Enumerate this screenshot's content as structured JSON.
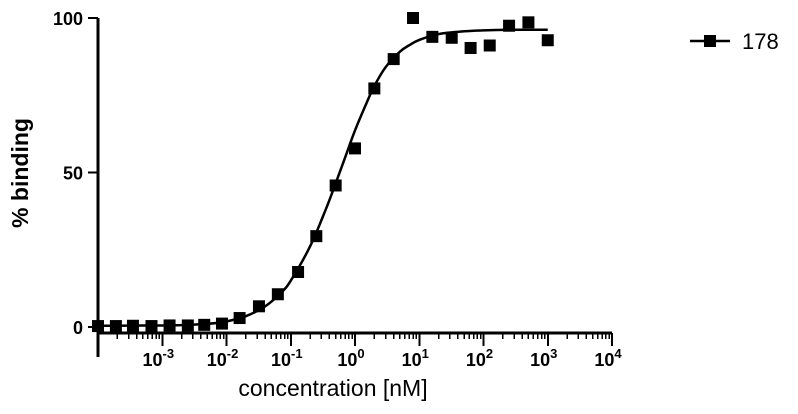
{
  "chart_data": {
    "type": "scatter",
    "title": "",
    "xlabel": "concentration [nM]",
    "ylabel": "% binding",
    "x_scale": "log10",
    "xlim": [
      0.0001,
      10000
    ],
    "ylim": [
      0,
      100
    ],
    "grid": false,
    "legend_position": "top-right",
    "x_ticks": [
      {
        "value": 0.001,
        "base": "10",
        "exp": "-3"
      },
      {
        "value": 0.01,
        "base": "10",
        "exp": "-2"
      },
      {
        "value": 0.1,
        "base": "10",
        "exp": "-1"
      },
      {
        "value": 1,
        "base": "10",
        "exp": "0"
      },
      {
        "value": 10,
        "base": "10",
        "exp": "1"
      },
      {
        "value": 100,
        "base": "10",
        "exp": "2"
      },
      {
        "value": 1000,
        "base": "10",
        "exp": "3"
      },
      {
        "value": 10000,
        "base": "10",
        "exp": "4"
      }
    ],
    "y_ticks": [
      {
        "value": 0,
        "label": "0"
      },
      {
        "value": 50,
        "label": "50"
      },
      {
        "value": 100,
        "label": "100"
      }
    ],
    "series": [
      {
        "name": "178",
        "color": "#000000",
        "marker": "square",
        "points": [
          {
            "x": 0.0001,
            "y": 0.3
          },
          {
            "x": 0.00019,
            "y": 0.3
          },
          {
            "x": 0.00035,
            "y": 0.4
          },
          {
            "x": 0.00068,
            "y": 0.3
          },
          {
            "x": 0.0013,
            "y": 0.5
          },
          {
            "x": 0.0025,
            "y": 0.5
          },
          {
            "x": 0.0045,
            "y": 0.7
          },
          {
            "x": 0.0085,
            "y": 1.1
          },
          {
            "x": 0.016,
            "y": 2.9
          },
          {
            "x": 0.032,
            "y": 6.7
          },
          {
            "x": 0.063,
            "y": 10.6
          },
          {
            "x": 0.13,
            "y": 17.8
          },
          {
            "x": 0.25,
            "y": 29.4
          },
          {
            "x": 0.5,
            "y": 45.8
          },
          {
            "x": 1.0,
            "y": 57.8
          },
          {
            "x": 2.0,
            "y": 77.2
          },
          {
            "x": 4.0,
            "y": 86.7
          },
          {
            "x": 8.0,
            "y": 100.0
          },
          {
            "x": 16.0,
            "y": 93.9
          },
          {
            "x": 32.0,
            "y": 93.6
          },
          {
            "x": 63.0,
            "y": 90.3
          },
          {
            "x": 125.0,
            "y": 91.1
          },
          {
            "x": 250.0,
            "y": 97.5
          },
          {
            "x": 500.0,
            "y": 98.6
          },
          {
            "x": 1000.0,
            "y": 92.8
          }
        ],
        "fit_curve": [
          {
            "x": 0.0001,
            "y": 0.4
          },
          {
            "x": 0.0002,
            "y": 0.4
          },
          {
            "x": 0.0005,
            "y": 0.5
          },
          {
            "x": 0.001,
            "y": 0.5
          },
          {
            "x": 0.002,
            "y": 0.6
          },
          {
            "x": 0.004,
            "y": 0.9
          },
          {
            "x": 0.007,
            "y": 1.3
          },
          {
            "x": 0.01,
            "y": 1.8
          },
          {
            "x": 0.02,
            "y": 3.5
          },
          {
            "x": 0.04,
            "y": 6.7
          },
          {
            "x": 0.07,
            "y": 11.0
          },
          {
            "x": 0.1,
            "y": 15.0
          },
          {
            "x": 0.2,
            "y": 26.1
          },
          {
            "x": 0.35,
            "y": 38.0
          },
          {
            "x": 0.5,
            "y": 46.5
          },
          {
            "x": 0.7,
            "y": 54.8
          },
          {
            "x": 1.0,
            "y": 63.6
          },
          {
            "x": 1.5,
            "y": 72.3
          },
          {
            "x": 2.0,
            "y": 78.0
          },
          {
            "x": 3.0,
            "y": 84.1
          },
          {
            "x": 5.0,
            "y": 89.1
          },
          {
            "x": 7.0,
            "y": 91.2
          },
          {
            "x": 10.0,
            "y": 92.9
          },
          {
            "x": 20.0,
            "y": 94.8
          },
          {
            "x": 50.0,
            "y": 95.7
          },
          {
            "x": 100.0,
            "y": 96.0
          },
          {
            "x": 300.0,
            "y": 96.2
          },
          {
            "x": 1000.0,
            "y": 96.2
          }
        ]
      }
    ]
  }
}
